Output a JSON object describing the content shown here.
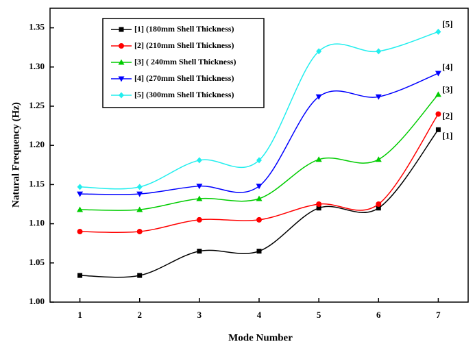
{
  "chart_data": {
    "type": "line",
    "x_label": "Mode Number",
    "y_label": "Natural Frequency (Hz)",
    "x": [
      1,
      2,
      3,
      4,
      5,
      6,
      7
    ],
    "xlim": [
      0.5,
      7.5
    ],
    "xticks": [
      1,
      2,
      3,
      4,
      5,
      6,
      7
    ],
    "ylim": [
      1.0,
      1.375
    ],
    "yticks": [
      {
        "value": 1.0,
        "label": "1.00"
      },
      {
        "value": 1.05,
        "label": "1.05"
      },
      {
        "value": 1.1,
        "label": "1.10"
      },
      {
        "value": 1.15,
        "label": "1.15"
      },
      {
        "value": 1.2,
        "label": "1.20"
      },
      {
        "value": 1.25,
        "label": "1.25"
      },
      {
        "value": 1.3,
        "label": "1.30"
      },
      {
        "value": 1.35,
        "label": "1.35"
      }
    ],
    "legend": "top-left",
    "series": [
      {
        "name": "[1] (180mm Shell Thickness)",
        "color": "#000000",
        "marker": "square",
        "values": [
          1.034,
          1.034,
          1.065,
          1.065,
          1.12,
          1.12,
          1.22
        ]
      },
      {
        "name": "[2] (210mm Shell Thickness)",
        "color": "#ff0000",
        "marker": "circle",
        "values": [
          1.09,
          1.09,
          1.105,
          1.105,
          1.125,
          1.125,
          1.24
        ]
      },
      {
        "name": "[3] ( 240mm Shell Thickness)",
        "color": "#00cc00",
        "marker": "triangle-up",
        "values": [
          1.118,
          1.118,
          1.132,
          1.132,
          1.182,
          1.182,
          1.265
        ]
      },
      {
        "name": "[4] (270mm Shell Thickness)",
        "color": "#0000ff",
        "marker": "triangle-down",
        "values": [
          1.138,
          1.138,
          1.148,
          1.148,
          1.262,
          1.262,
          1.292
        ]
      },
      {
        "name": "[5] (300mm Shell Thickness)",
        "color": "#22eeee",
        "marker": "diamond",
        "values": [
          1.147,
          1.147,
          1.181,
          1.181,
          1.32,
          1.32,
          1.345
        ]
      }
    ],
    "annotations": [
      "[1]",
      "[2]",
      "[3]",
      "[4]",
      "[5]"
    ]
  }
}
